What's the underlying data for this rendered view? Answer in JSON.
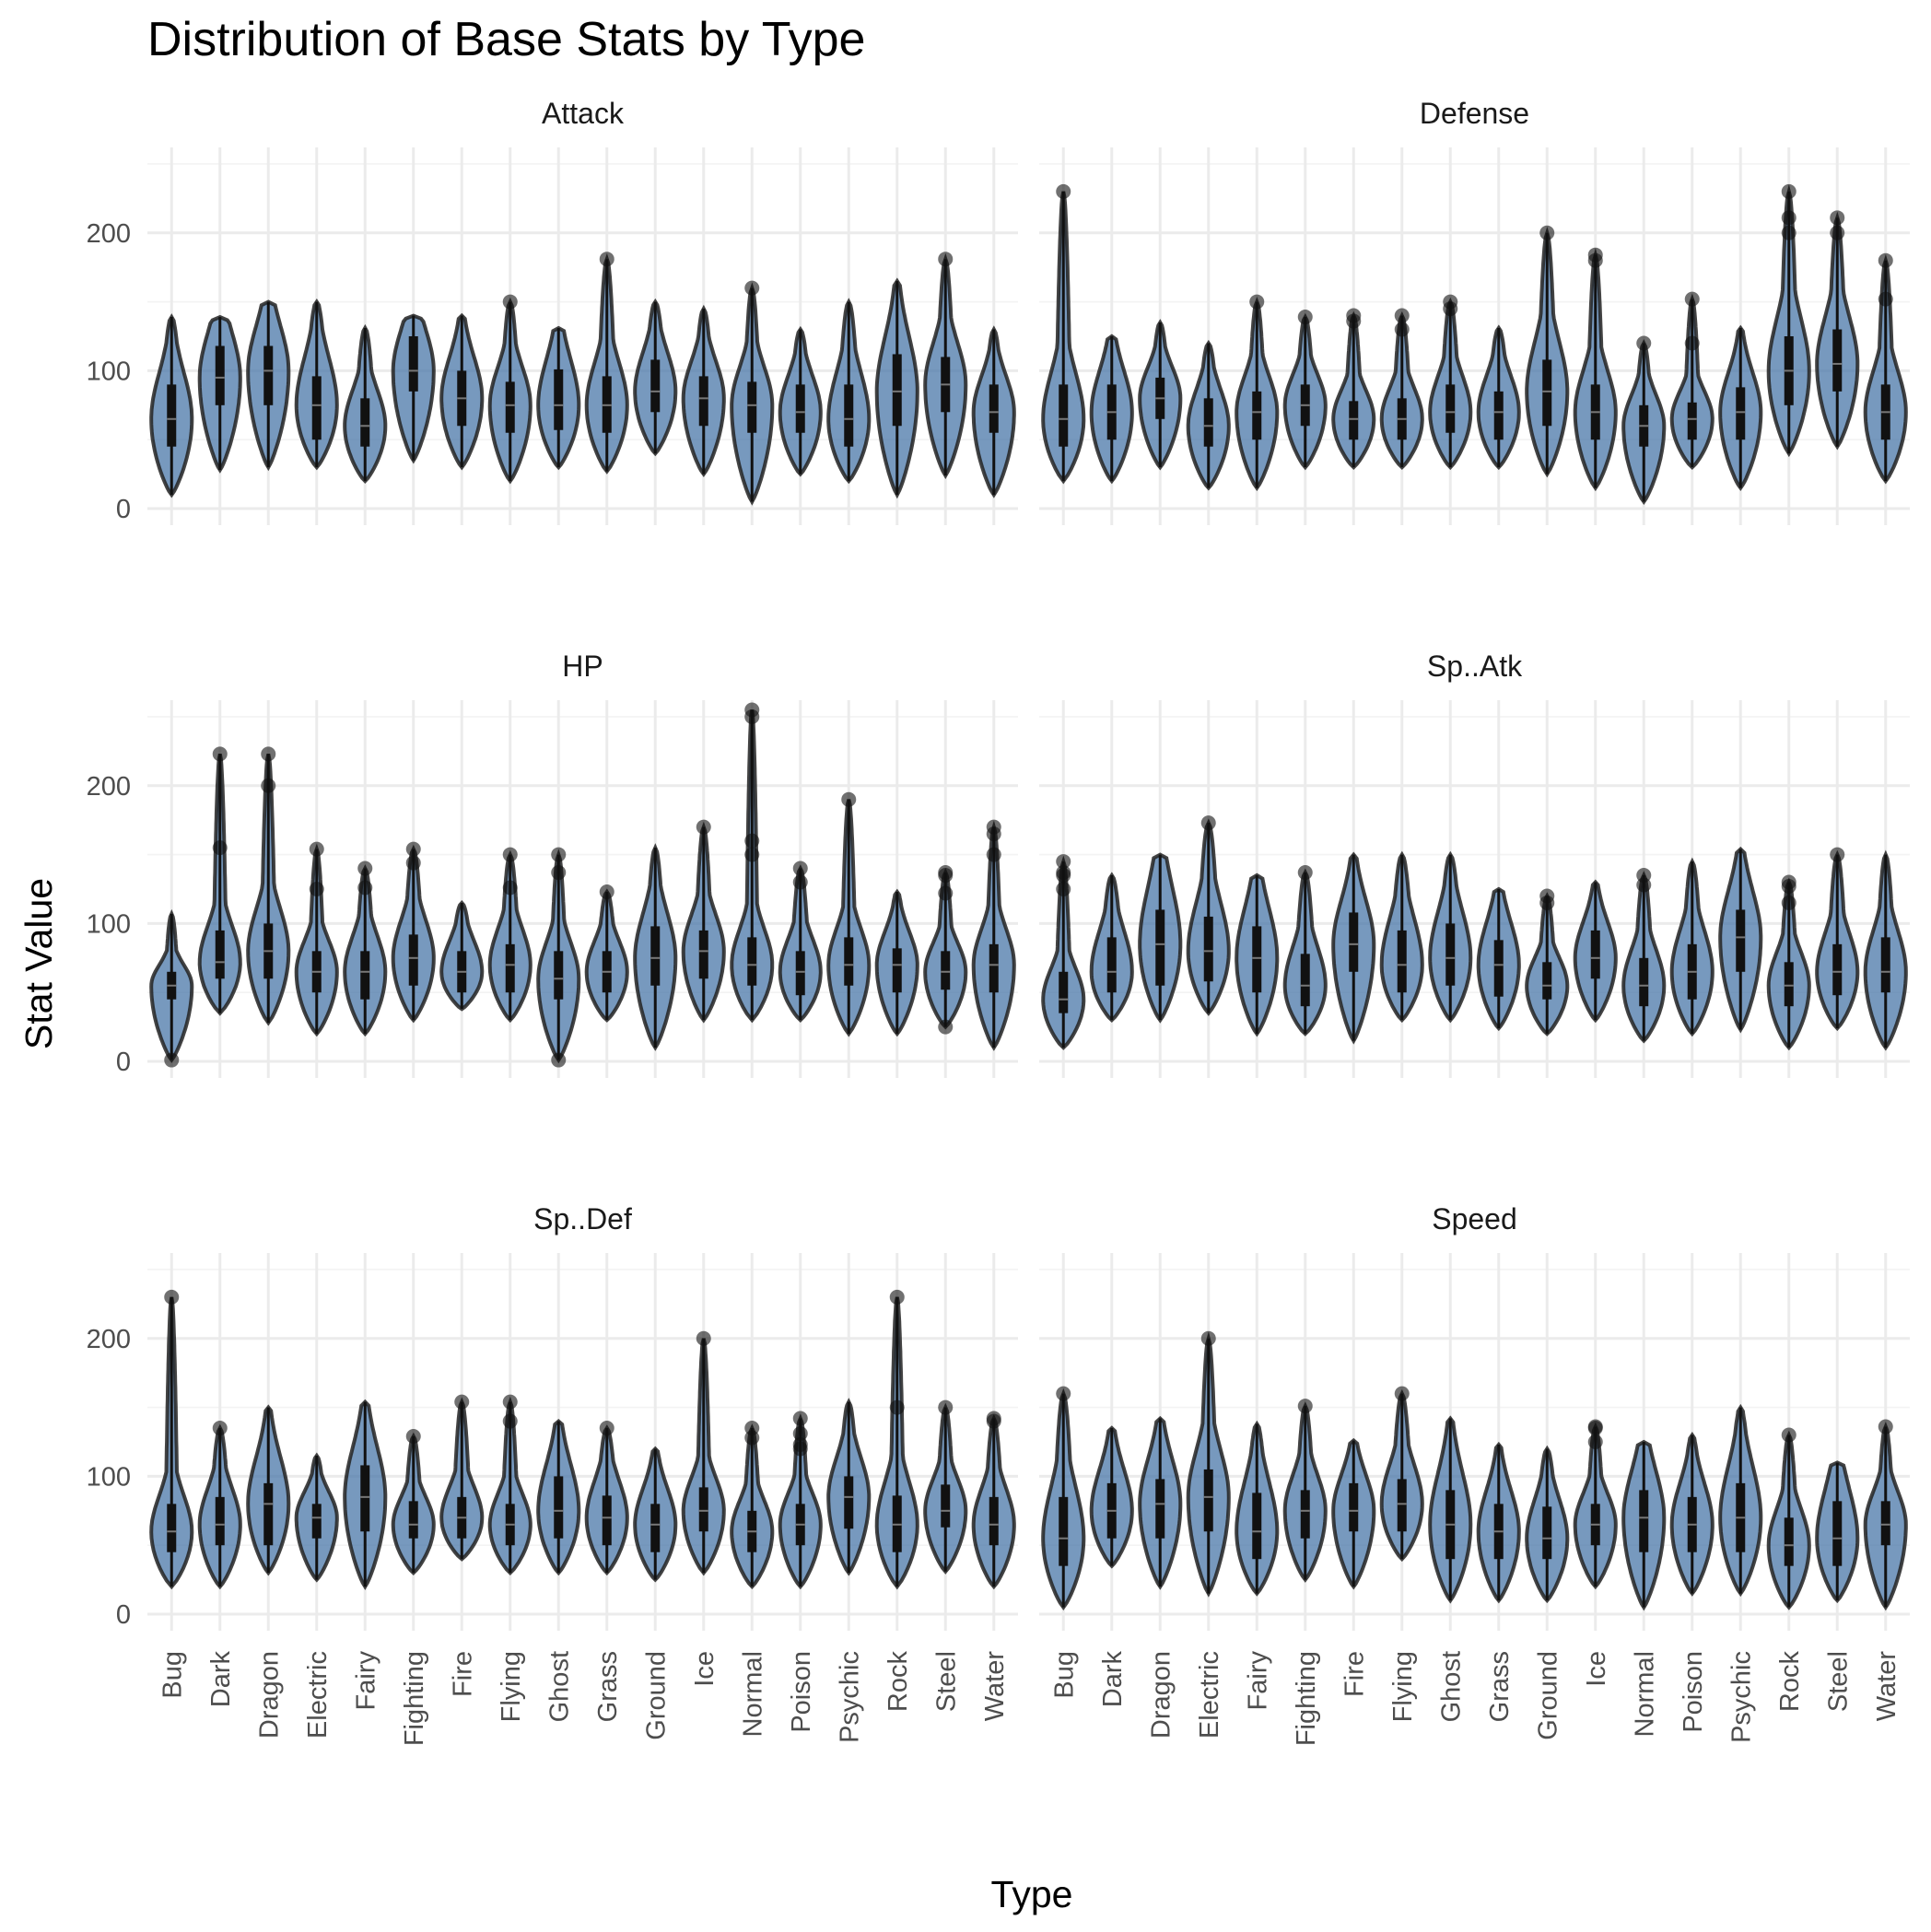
{
  "chart_data": {
    "type": "violin",
    "title": "Distribution of Base Stats by Type",
    "xlabel": "Type",
    "ylabel": "Stat Value",
    "ylim": [
      -12,
      262
    ],
    "yticks": [
      0,
      100,
      200
    ],
    "grid": true,
    "legend": "none",
    "fill_color": "#4a77a8",
    "categories": [
      "Bug",
      "Dark",
      "Dragon",
      "Electric",
      "Fairy",
      "Fighting",
      "Fire",
      "Flying",
      "Ghost",
      "Grass",
      "Ground",
      "Ice",
      "Normal",
      "Poison",
      "Psychic",
      "Rock",
      "Steel",
      "Water"
    ],
    "panels": [
      {
        "name": "Attack",
        "min": [
          10,
          28,
          30,
          30,
          20,
          35,
          30,
          20,
          30,
          27,
          40,
          25,
          5,
          25,
          20,
          10,
          24,
          10
        ],
        "q1": [
          45,
          75,
          75,
          50,
          45,
          85,
          60,
          55,
          57,
          55,
          70,
          60,
          55,
          55,
          45,
          60,
          70,
          55
        ],
        "median": [
          65,
          95,
          100,
          75,
          60,
          100,
          80,
          75,
          75,
          75,
          85,
          80,
          75,
          70,
          65,
          85,
          90,
          70
        ],
        "q3": [
          90,
          118,
          118,
          96,
          80,
          125,
          100,
          92,
          101,
          96,
          108,
          96,
          92,
          90,
          90,
          112,
          110,
          90
        ],
        "max": [
          139,
          139,
          150,
          150,
          131,
          140,
          140,
          150,
          131,
          181,
          150,
          145,
          160,
          130,
          150,
          165,
          181,
          130
        ],
        "outliers": [
          [],
          [],
          [],
          [],
          [],
          [],
          [],
          [
            150
          ],
          [],
          [
            181
          ],
          [],
          [],
          [
            160
          ],
          [],
          [],
          [],
          [
            181
          ],
          []
        ]
      },
      {
        "name": "Defense",
        "min": [
          20,
          20,
          30,
          15,
          15,
          30,
          30,
          30,
          30,
          30,
          25,
          15,
          5,
          30,
          15,
          40,
          45,
          20
        ],
        "q1": [
          45,
          50,
          65,
          45,
          50,
          60,
          50,
          50,
          55,
          50,
          60,
          50,
          45,
          50,
          50,
          75,
          85,
          50
        ],
        "median": [
          65,
          70,
          80,
          60,
          70,
          75,
          65,
          65,
          70,
          70,
          85,
          70,
          60,
          65,
          70,
          100,
          105,
          70
        ],
        "q3": [
          90,
          90,
          95,
          80,
          85,
          90,
          78,
          80,
          90,
          85,
          108,
          90,
          75,
          77,
          88,
          125,
          130,
          90
        ],
        "max": [
          230,
          125,
          135,
          120,
          150,
          139,
          140,
          140,
          150,
          131,
          200,
          184,
          120,
          152,
          131,
          230,
          211,
          180
        ],
        "outliers": [
          [
            230
          ],
          [],
          [],
          [],
          [
            150
          ],
          [
            139
          ],
          [
            140,
            136
          ],
          [
            140,
            130
          ],
          [
            150,
            145
          ],
          [],
          [
            200
          ],
          [
            184,
            180
          ],
          [
            120
          ],
          [
            152,
            120
          ],
          [],
          [
            230,
            211,
            200
          ],
          [
            211,
            200
          ],
          [
            180,
            152
          ]
        ]
      },
      {
        "name": "HP",
        "min": [
          1,
          35,
          28,
          20,
          20,
          30,
          38,
          30,
          1,
          30,
          10,
          30,
          30,
          30,
          20,
          20,
          25,
          10
        ],
        "q1": [
          45,
          60,
          60,
          50,
          45,
          55,
          50,
          50,
          45,
          50,
          55,
          60,
          55,
          48,
          55,
          50,
          52,
          50
        ],
        "median": [
          55,
          72,
          80,
          65,
          65,
          75,
          65,
          70,
          60,
          65,
          75,
          80,
          70,
          65,
          70,
          70,
          65,
          70
        ],
        "q3": [
          65,
          95,
          100,
          80,
          80,
          92,
          80,
          85,
          80,
          80,
          98,
          95,
          90,
          80,
          90,
          82,
          80,
          85
        ],
        "max": [
          107,
          223,
          223,
          154,
          140,
          154,
          115,
          150,
          150,
          123,
          155,
          170,
          255,
          140,
          190,
          123,
          137,
          170
        ],
        "outliers": [
          [
            1
          ],
          [
            223,
            155
          ],
          [
            223,
            200
          ],
          [
            154,
            125
          ],
          [
            140,
            126
          ],
          [
            154,
            144
          ],
          [],
          [
            150,
            126
          ],
          [
            150,
            137,
            1
          ],
          [
            123
          ],
          [],
          [
            170
          ],
          [
            255,
            250,
            160,
            150
          ],
          [
            140,
            130
          ],
          [
            190
          ],
          [],
          [
            137,
            135,
            122,
            25
          ],
          [
            170,
            165,
            150
          ]
        ]
      },
      {
        "name": "Sp..Atk",
        "min": [
          10,
          30,
          30,
          35,
          20,
          20,
          15,
          30,
          30,
          24,
          20,
          30,
          15,
          20,
          23,
          10,
          24,
          10
        ],
        "q1": [
          35,
          50,
          55,
          58,
          50,
          40,
          65,
          50,
          55,
          47,
          45,
          60,
          40,
          45,
          65,
          40,
          48,
          50
        ],
        "median": [
          45,
          65,
          85,
          80,
          75,
          55,
          85,
          70,
          75,
          70,
          55,
          75,
          55,
          65,
          90,
          55,
          65,
          65
        ],
        "q3": [
          65,
          90,
          110,
          105,
          98,
          78,
          108,
          95,
          100,
          88,
          72,
          95,
          75,
          85,
          110,
          72,
          85,
          90
        ],
        "max": [
          145,
          135,
          150,
          173,
          135,
          137,
          150,
          150,
          150,
          125,
          120,
          130,
          135,
          145,
          154,
          130,
          150,
          150
        ],
        "outliers": [
          [
            145,
            137,
            135,
            125
          ],
          [],
          [],
          [
            173
          ],
          [],
          [
            137
          ],
          [],
          [],
          [],
          [],
          [
            120,
            115
          ],
          [],
          [
            135,
            128
          ],
          [],
          [],
          [
            130,
            127,
            115
          ],
          [
            150
          ],
          []
        ]
      },
      {
        "name": "Sp..Def",
        "min": [
          20,
          20,
          30,
          25,
          20,
          30,
          40,
          30,
          30,
          30,
          25,
          30,
          20,
          20,
          30,
          20,
          31,
          20
        ],
        "q1": [
          45,
          50,
          50,
          55,
          60,
          55,
          55,
          50,
          55,
          50,
          45,
          60,
          45,
          50,
          62,
          45,
          63,
          50
        ],
        "median": [
          60,
          65,
          80,
          70,
          85,
          65,
          70,
          65,
          75,
          70,
          65,
          75,
          60,
          65,
          85,
          65,
          75,
          65
        ],
        "q3": [
          80,
          85,
          95,
          80,
          108,
          82,
          85,
          80,
          100,
          86,
          80,
          92,
          75,
          80,
          100,
          86,
          94,
          85
        ],
        "max": [
          230,
          135,
          150,
          115,
          154,
          129,
          154,
          154,
          140,
          135,
          120,
          200,
          135,
          142,
          154,
          230,
          150,
          142
        ],
        "outliers": [
          [
            230
          ],
          [
            135
          ],
          [],
          [],
          [],
          [
            129
          ],
          [
            154
          ],
          [
            154,
            140
          ],
          [],
          [
            135
          ],
          [],
          [
            200
          ],
          [
            135,
            128
          ],
          [
            142,
            131,
            123,
            120
          ],
          [],
          [
            230,
            150
          ],
          [
            150
          ],
          [
            142,
            140
          ]
        ]
      },
      {
        "name": "Speed",
        "min": [
          5,
          35,
          20,
          15,
          15,
          25,
          20,
          40,
          10,
          10,
          10,
          20,
          5,
          15,
          15,
          5,
          10,
          5
        ],
        "q1": [
          35,
          55,
          55,
          60,
          40,
          55,
          60,
          60,
          40,
          40,
          40,
          50,
          45,
          45,
          45,
          35,
          35,
          50
        ],
        "median": [
          55,
          75,
          80,
          85,
          60,
          75,
          75,
          80,
          65,
          60,
          55,
          65,
          70,
          65,
          70,
          50,
          55,
          65
        ],
        "q3": [
          85,
          95,
          98,
          105,
          88,
          90,
          95,
          98,
          90,
          80,
          78,
          80,
          90,
          85,
          95,
          70,
          82,
          82
        ],
        "max": [
          160,
          135,
          142,
          200,
          138,
          151,
          126,
          160,
          142,
          123,
          120,
          136,
          125,
          130,
          150,
          130,
          110,
          136
        ],
        "outliers": [
          [
            160
          ],
          [],
          [],
          [
            200
          ],
          [],
          [
            151
          ],
          [],
          [
            160
          ],
          [],
          [],
          [],
          [
            136,
            135,
            125
          ],
          [],
          [],
          [],
          [
            130
          ],
          [],
          [
            136
          ]
        ]
      }
    ]
  }
}
